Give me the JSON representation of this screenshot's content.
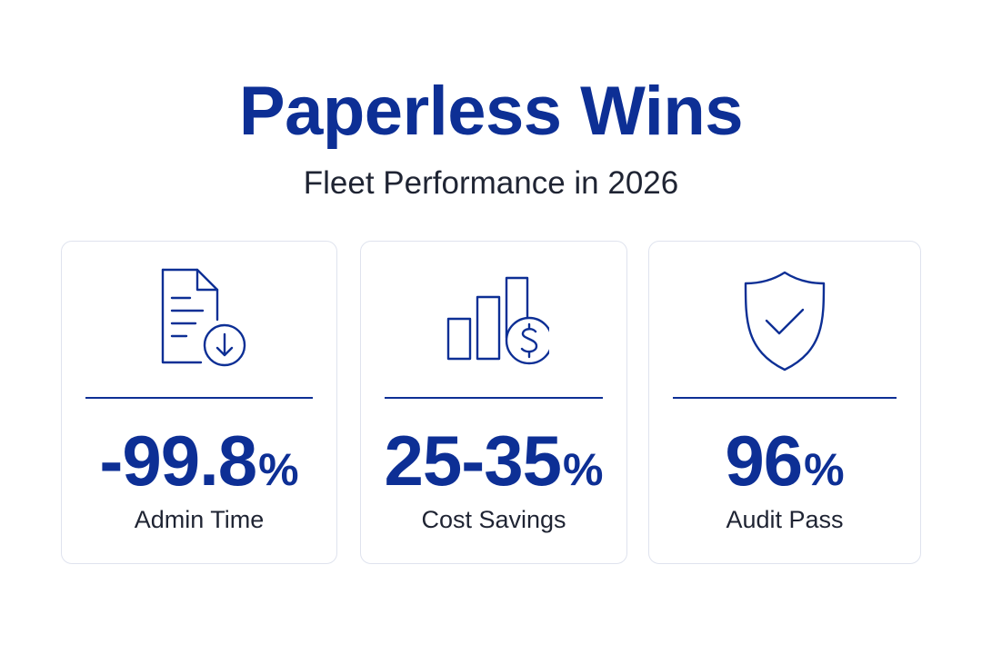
{
  "header": {
    "title": "Paperless Wins",
    "subtitle": "Fleet Performance in 2026"
  },
  "colors": {
    "brand": "#0d2f95",
    "text": "#1f2433",
    "card_border": "#dfe3ee"
  },
  "cards": [
    {
      "icon": "document-download-icon",
      "value": "-99.8",
      "unit": "%",
      "label": "Admin Time"
    },
    {
      "icon": "bar-chart-dollar-icon",
      "value": "25-35",
      "unit": "%",
      "label": "Cost Savings"
    },
    {
      "icon": "shield-check-icon",
      "value": "96",
      "unit": "%",
      "label": "Audit Pass"
    }
  ]
}
